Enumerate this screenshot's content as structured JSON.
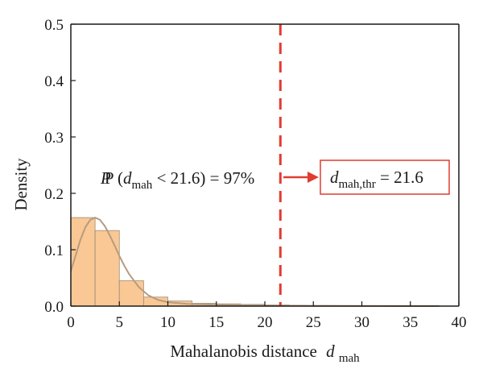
{
  "chart_data": {
    "type": "bar",
    "title": "",
    "xlabel": "Mahalanobis distance",
    "xlabel_symbol": "d",
    "xlabel_subscript": "mah",
    "ylabel": "Density",
    "xlim": [
      0,
      40
    ],
    "ylim": [
      0,
      0.5
    ],
    "x_ticks": [
      "0",
      "5",
      "10",
      "15",
      "20",
      "25",
      "30",
      "35",
      "40"
    ],
    "y_ticks": [
      "0.0",
      "0.1",
      "0.2",
      "0.3",
      "0.4",
      "0.5"
    ],
    "grid": false,
    "bins": [
      {
        "start": 0.0,
        "end": 2.5,
        "value": 0.157
      },
      {
        "start": 2.5,
        "end": 5.0,
        "value": 0.134
      },
      {
        "start": 5.0,
        "end": 7.5,
        "value": 0.045
      },
      {
        "start": 7.5,
        "end": 10.0,
        "value": 0.016
      },
      {
        "start": 10.0,
        "end": 12.5,
        "value": 0.009
      },
      {
        "start": 12.5,
        "end": 15.0,
        "value": 0.005
      },
      {
        "start": 15.0,
        "end": 17.5,
        "value": 0.004
      },
      {
        "start": 17.5,
        "end": 20.0,
        "value": 0.003
      },
      {
        "start": 20.0,
        "end": 22.5,
        "value": 0.002
      },
      {
        "start": 22.5,
        "end": 25.0,
        "value": 0.001
      },
      {
        "start": 25.0,
        "end": 27.5,
        "value": 0.001
      },
      {
        "start": 27.5,
        "end": 30.0,
        "value": 0.0005
      },
      {
        "start": 30.0,
        "end": 32.5,
        "value": 0.0005
      },
      {
        "start": 32.5,
        "end": 35.0,
        "value": 0.0003
      },
      {
        "start": 35.0,
        "end": 37.5,
        "value": 0.0002
      }
    ],
    "density_curve": {
      "x": [
        0,
        0.5,
        1,
        1.5,
        2,
        2.5,
        3,
        3.5,
        4,
        4.5,
        5,
        5.5,
        6,
        7,
        8,
        9,
        10,
        12,
        14,
        16,
        18,
        20,
        22,
        25,
        30,
        35,
        38
      ],
      "y": [
        0.062,
        0.09,
        0.118,
        0.14,
        0.153,
        0.157,
        0.153,
        0.142,
        0.126,
        0.108,
        0.089,
        0.072,
        0.057,
        0.034,
        0.019,
        0.011,
        0.007,
        0.004,
        0.003,
        0.002,
        0.0015,
        0.001,
        0.0008,
        0.0005,
        0.0003,
        0.0002,
        0.0001
      ]
    },
    "threshold_line": {
      "x": 21.6
    },
    "annotations": {
      "probability": {
        "prefix": "P (",
        "symbol": "d",
        "subscript": "mah",
        "suffix": " < 21.6) = 97%"
      },
      "threshold_box": {
        "symbol": "d",
        "subscript": "mah,thr",
        "suffix": " = 21.6"
      }
    },
    "colors": {
      "bar_fill": "#f9c895",
      "bar_stroke": "#a08a74",
      "curve": "#b89b7e",
      "threshold": "#e03c31",
      "box_stroke": "#e03c31",
      "axis": "#1a1a1a"
    }
  }
}
